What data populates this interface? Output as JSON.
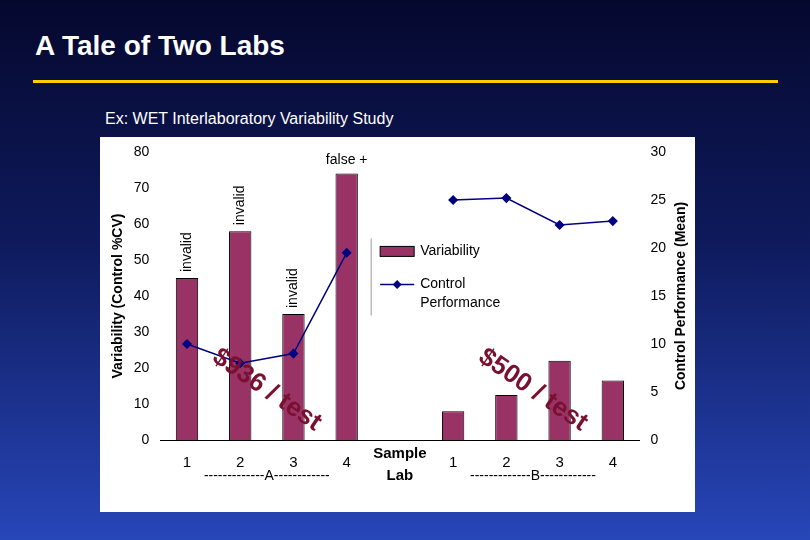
{
  "page": {
    "title": "A Tale of Two Labs",
    "subtitle": "Ex: WET Interlaboratory Variability Study"
  },
  "chart_data": {
    "type": "bar",
    "categories": [
      "1",
      "2",
      "3",
      "4",
      null,
      "1",
      "2",
      "3",
      "4"
    ],
    "x_label": "Sample",
    "group_label": "Lab",
    "groups": [
      "-------------A------------",
      "-------------B------------"
    ],
    "y_label": "Variability (Control %CV)",
    "y2_label": "Control Performance (Mean)",
    "series": [
      {
        "name": "Variability",
        "type": "bar",
        "color": "#993366",
        "values": [
          45,
          58,
          35,
          74,
          null,
          8,
          12.5,
          22,
          16.5
        ]
      },
      {
        "name": "Control Performance",
        "type": "line",
        "axis": "y2",
        "color": "#000080",
        "marker": "diamond",
        "line_style": "solid",
        "values": [
          10,
          8,
          9,
          19.5,
          null,
          25,
          25.2,
          22.4,
          22.8
        ]
      }
    ],
    "ylim": [
      0,
      80
    ],
    "yticks": [
      0,
      10,
      20,
      30,
      40,
      50,
      60,
      70,
      80
    ],
    "y2lim": [
      0,
      30
    ],
    "y2ticks": [
      0,
      5,
      10,
      15,
      20,
      25,
      30
    ],
    "grid": false,
    "legend": "center",
    "bar_notes": [
      "invalid",
      "invalid",
      "invalid",
      "false +",
      null,
      null,
      null,
      null,
      null
    ],
    "group_notes": [
      "$936 / test",
      "$500 / test"
    ]
  }
}
